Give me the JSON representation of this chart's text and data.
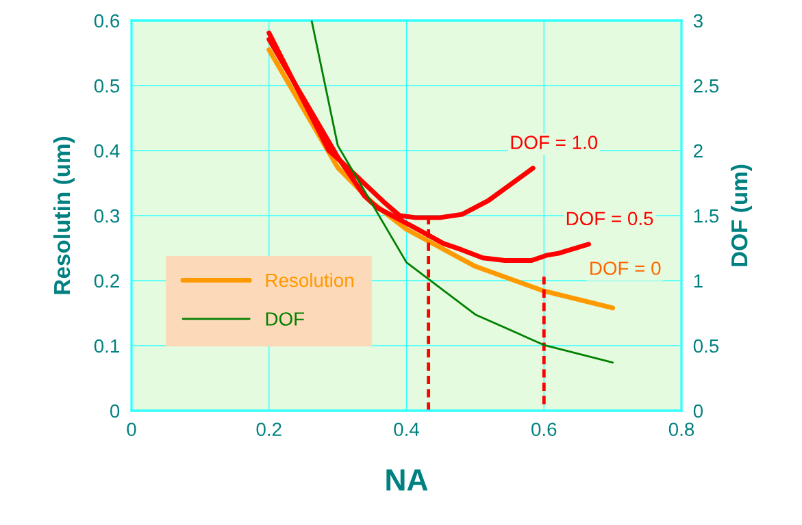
{
  "chart_data": {
    "type": "line",
    "xlabel": "NA",
    "ylabel": "Resolutin (um)",
    "y2label": "DOF (um)",
    "xlim": [
      0,
      0.8
    ],
    "xticks": [
      0,
      0.2,
      0.4,
      0.6,
      0.8
    ],
    "ylim": [
      0,
      0.6
    ],
    "yticks": [
      0,
      0.1,
      0.2,
      0.3,
      0.4,
      0.5,
      0.6
    ],
    "y2lim": [
      0,
      3
    ],
    "y2ticks": [
      0,
      0.5,
      1,
      1.5,
      2,
      2.5,
      3
    ],
    "grid": true,
    "legend": "bottom left",
    "marker": "none",
    "line_style": "solid",
    "series": [
      {
        "name": "Resolution",
        "color": "#ff9900",
        "x": [
          0.2,
          0.3,
          0.35,
          0.4,
          0.5,
          0.6,
          0.7
        ],
        "values": [
          0.555,
          0.374,
          0.32,
          0.279,
          0.222,
          0.184,
          0.158
        ]
      },
      {
        "name": "DOF",
        "color": "#008000",
        "axis": "y2",
        "x": [
          0.262,
          0.3,
          0.4,
          0.5,
          0.6,
          0.7
        ],
        "values": [
          3.0,
          2.04,
          1.14,
          0.74,
          0.505,
          0.37
        ]
      },
      {
        "name": "DOF = 1.0",
        "color": "#ff0000",
        "x": [
          0.2,
          0.287,
          0.302,
          0.367,
          0.39,
          0.413,
          0.449,
          0.481,
          0.519,
          0.584
        ],
        "values": [
          0.581,
          0.4,
          0.386,
          0.321,
          0.3,
          0.297,
          0.297,
          0.302,
          0.323,
          0.373
        ]
      },
      {
        "name": "DOF = 0.5",
        "color": "#ff0000",
        "x": [
          0.2,
          0.3,
          0.339,
          0.358,
          0.411,
          0.454,
          0.479,
          0.511,
          0.543,
          0.582,
          0.604,
          0.621,
          0.665
        ],
        "values": [
          0.571,
          0.39,
          0.33,
          0.312,
          0.282,
          0.257,
          0.248,
          0.235,
          0.231,
          0.231,
          0.239,
          0.242,
          0.256
        ]
      },
      {
        "color": "#ff0000",
        "line_style": "dashed",
        "x": [
          0.432,
          0.432
        ],
        "values": [
          0,
          0.297
        ]
      },
      {
        "color": "#ff0000",
        "line_style": "dashed",
        "x": [
          0.6,
          0.6
        ],
        "values": [
          0.01,
          0.206
        ]
      }
    ],
    "annotations": [
      "DOF = 0"
    ]
  }
}
